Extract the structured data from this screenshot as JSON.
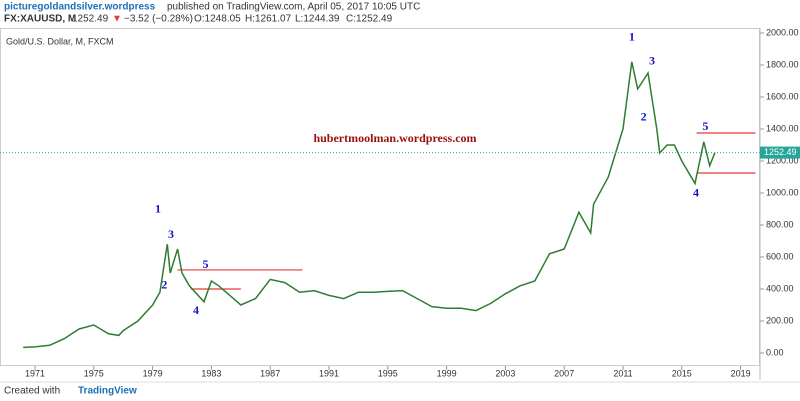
{
  "header": {
    "author": "picturegoldandsilver.wordpress",
    "published": "published on TradingView.com, April 05, 2017 10:05 UTC",
    "symbol": "FX:XAUUSD, M",
    "last": "1252.49",
    "arrow": "▼",
    "change": "−3.52 (−0.28%)",
    "open": "O:1248.05",
    "high": "H:1261.07",
    "low": "L:1244.39",
    "close": "C:1252.49"
  },
  "footer": {
    "created": "Created with",
    "brand": "TradingView"
  },
  "chart_data": {
    "type": "line",
    "title": "Gold/U.S. Dollar, M, FXCM",
    "watermark": "hubertmoolman.wordpress.com",
    "series": [
      {
        "name": "XAUUSD",
        "color": "#2e7d32",
        "x": [
          1970.2,
          1971,
          1972,
          1973,
          1974,
          1975,
          1976,
          1976.7,
          1977,
          1978,
          1979,
          1979.5,
          1980.0,
          1980.2,
          1980.7,
          1981,
          1981.5,
          1982.5,
          1983,
          1983.5,
          1984,
          1985,
          1986,
          1987,
          1988,
          1989,
          1990,
          1991,
          1992,
          1993,
          1994,
          1995,
          1996,
          1997,
          1998,
          1999,
          2000,
          2001,
          2002,
          2003,
          2004,
          2005,
          2006,
          2007,
          2008,
          2008.8,
          2009,
          2010,
          2010.5,
          2011,
          2011.6,
          2012,
          2012.7,
          2013.3,
          2013.5,
          2014,
          2014.5,
          2015,
          2015.9,
          2016.5,
          2016.9,
          2017.25
        ],
        "values": [
          35,
          38,
          48,
          90,
          150,
          175,
          120,
          110,
          140,
          200,
          300,
          380,
          680,
          500,
          650,
          500,
          420,
          320,
          450,
          420,
          380,
          300,
          340,
          460,
          440,
          380,
          390,
          360,
          340,
          380,
          380,
          385,
          390,
          340,
          290,
          280,
          280,
          265,
          310,
          370,
          420,
          450,
          620,
          650,
          880,
          750,
          930,
          1100,
          1250,
          1400,
          1820,
          1650,
          1750,
          1400,
          1250,
          1300,
          1300,
          1200,
          1060,
          1320,
          1170,
          1252.49
        ]
      }
    ],
    "last_price": 1252.49,
    "last_price_color": "#26a69a",
    "lines": [
      {
        "x": [
          1980.7,
          1989.2
        ],
        "y": 519,
        "color": "#e53935"
      },
      {
        "x": [
          1981.6,
          1985.0
        ],
        "y": 400,
        "color": "#e53935"
      },
      {
        "x": [
          2016.0,
          2020.0
        ],
        "y": 1375,
        "color": "#e53935"
      },
      {
        "x": [
          2016.0,
          2020.0
        ],
        "y": 1125,
        "color": "#e53935"
      }
    ],
    "annotations": [
      {
        "text": "1",
        "x": 1979.37,
        "y": 894
      },
      {
        "text": "3",
        "x": 1980.25,
        "y": 737
      },
      {
        "text": "2",
        "x": 1979.8,
        "y": 419
      },
      {
        "text": "5",
        "x": 1982.6,
        "y": 550
      },
      {
        "text": "4",
        "x": 1981.95,
        "y": 262
      },
      {
        "text": "1",
        "x": 2011.6,
        "y": 1969
      },
      {
        "text": "3",
        "x": 2012.97,
        "y": 1819
      },
      {
        "text": "2",
        "x": 2012.4,
        "y": 1469
      },
      {
        "text": "5",
        "x": 2016.6,
        "y": 1412
      },
      {
        "text": "4",
        "x": 2015.97,
        "y": 994
      }
    ],
    "xlim": [
      1968.62,
      2020.32
    ],
    "xticks": [
      1971,
      1975,
      1979,
      1983,
      1987,
      1991,
      1995,
      1999,
      2003,
      2007,
      2011,
      2015,
      2019
    ],
    "ylim": [
      -81.25,
      2031.25
    ],
    "yticks": [
      {
        "value": 0,
        "label": "0.00"
      },
      {
        "value": 200,
        "label": "200.00"
      },
      {
        "value": 400,
        "label": "400.00"
      },
      {
        "value": 600,
        "label": "600.00"
      },
      {
        "value": 800,
        "label": "800.00"
      },
      {
        "value": 1000,
        "label": "1000.00"
      },
      {
        "value": 1200,
        "label": "1200.00"
      },
      {
        "value": 1400,
        "label": "1400.00"
      },
      {
        "value": 1600,
        "label": "1600.00"
      },
      {
        "value": 1800,
        "label": "1800.00"
      },
      {
        "value": 2000,
        "label": "2000.00"
      }
    ]
  }
}
